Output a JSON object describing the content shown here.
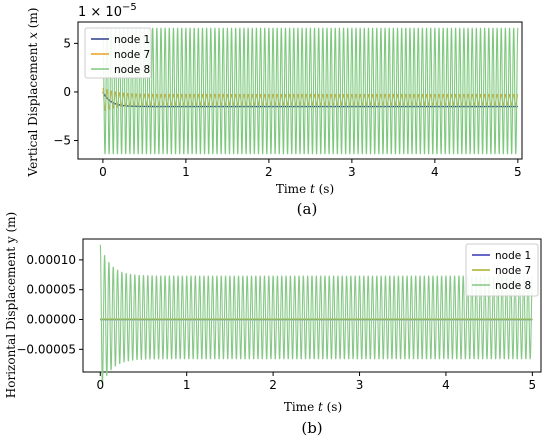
{
  "chart_data": [
    {
      "type": "line",
      "caption": "(a)",
      "xlabel_prefix": "Time ",
      "xlabel_var": "t",
      "xlabel_suffix": " (s)",
      "ylabel_prefix": "Vertical Displacement ",
      "ylabel_var": "x",
      "ylabel_suffix": " (m)",
      "multiplier_base": "1 × 10",
      "multiplier_exp": "−5",
      "xlim": [
        -0.3,
        5.05
      ],
      "ylim": [
        -6.9,
        7.2
      ],
      "xticks": [
        0,
        1,
        2,
        3,
        4,
        5
      ],
      "yticks": [
        -5,
        0,
        5
      ],
      "ytick_labels": [
        "−5",
        "0",
        "5"
      ],
      "grid": false,
      "legend_position": "top-left",
      "cycles": 100,
      "series": [
        {
          "name": "node 1",
          "color": "#2b3f8c",
          "kind": "decay",
          "start": 0,
          "final": -1.5,
          "tau": 0.09
        },
        {
          "name": "node 7",
          "color": "#e8a21f",
          "kind": "osc",
          "center": -0.8,
          "amplitude": 0.55,
          "initial_amplitude": 1.2,
          "tau": 0.15
        },
        {
          "name": "node 8",
          "color": "#7fc97f",
          "kind": "osc",
          "center": 0.1,
          "amplitude": 6.5,
          "initial_amplitude": 6.5,
          "tau": 0.1
        }
      ]
    },
    {
      "type": "line",
      "caption": "(b)",
      "xlabel_prefix": "Time ",
      "xlabel_var": "t",
      "xlabel_suffix": " (s)",
      "ylabel_prefix": "Horizontal Displacement ",
      "ylabel_var": "y",
      "ylabel_suffix": " (m)",
      "xlim": [
        -0.2,
        5.1
      ],
      "ylim": [
        -8.8e-05,
        0.000135
      ],
      "xticks": [
        0,
        1,
        2,
        3,
        4,
        5
      ],
      "yticks": [
        -5e-05,
        0,
        5e-05,
        0.0001
      ],
      "ytick_labels": [
        "−0.00005",
        "0.00000",
        "0.00005",
        "0.00010"
      ],
      "grid": false,
      "legend_position": "top-right",
      "cycles": 100,
      "series": [
        {
          "name": "node 1",
          "color": "#3535b8",
          "kind": "flat",
          "center": 0.0
        },
        {
          "name": "node 7",
          "color": "#a9b22a",
          "kind": "flat",
          "center": 5e-07
        },
        {
          "name": "node 8",
          "color": "#86c886",
          "kind": "osc",
          "center": 3.5e-06,
          "amplitude": 7e-05,
          "initial_amplitude": 0.000122,
          "tau": 0.12
        }
      ]
    }
  ]
}
